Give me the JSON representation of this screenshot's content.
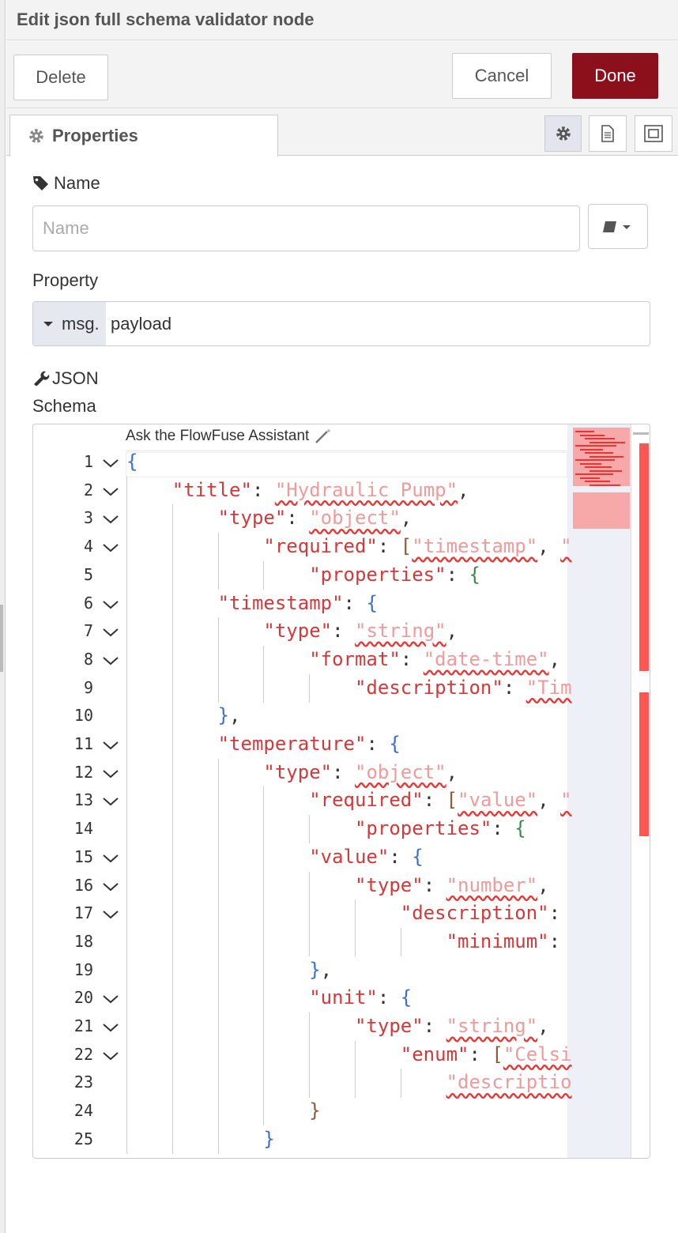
{
  "header": {
    "title": "Edit json full schema validator node"
  },
  "buttons": {
    "delete": "Delete",
    "cancel": "Cancel",
    "done": "Done"
  },
  "tabs": {
    "properties": "Properties"
  },
  "form": {
    "name_label": "Name",
    "name_placeholder": "Name",
    "property_label": "Property",
    "property_prefix": "msg.",
    "property_value": "payload",
    "schema_label": "JSON Schema"
  },
  "editor": {
    "assistant": "Ask the FlowFuse Assistant",
    "lines": [
      {
        "number": 1,
        "text": "{"
      },
      {
        "number": 2,
        "text": "    \"title\": \"Hydraulic Pump\","
      },
      {
        "number": 3,
        "text": "        \"type\": \"object\","
      },
      {
        "number": 4,
        "text": "            \"required\": [\"timestamp\", \""
      },
      {
        "number": 5,
        "text": "                \"properties\": {"
      },
      {
        "number": 6,
        "text": "        \"timestamp\": {"
      },
      {
        "number": 7,
        "text": "            \"type\": \"string\","
      },
      {
        "number": 8,
        "text": "                \"format\": \"date-time\","
      },
      {
        "number": 9,
        "text": "                    \"description\": \"Tim"
      },
      {
        "number": 10,
        "text": "        },"
      },
      {
        "number": 11,
        "text": "        \"temperature\": {"
      },
      {
        "number": 12,
        "text": "            \"type\": \"object\","
      },
      {
        "number": 13,
        "text": "                \"required\": [\"value\", \""
      },
      {
        "number": 14,
        "text": "                    \"properties\": {"
      },
      {
        "number": 15,
        "text": "                \"value\": {"
      },
      {
        "number": 16,
        "text": "                    \"type\": \"number\","
      },
      {
        "number": 17,
        "text": "                        \"description\":"
      },
      {
        "number": 18,
        "text": "                            \"minimum\":"
      },
      {
        "number": 19,
        "text": "                },"
      },
      {
        "number": 20,
        "text": "                \"unit\": {"
      },
      {
        "number": 21,
        "text": "                    \"type\": \"string\","
      },
      {
        "number": 22,
        "text": "                        \"enum\": [\"Celsi"
      },
      {
        "number": 23,
        "text": "                            \"descriptio"
      },
      {
        "number": 24,
        "text": "                }"
      },
      {
        "number": 25,
        "text": "            }"
      }
    ]
  }
}
